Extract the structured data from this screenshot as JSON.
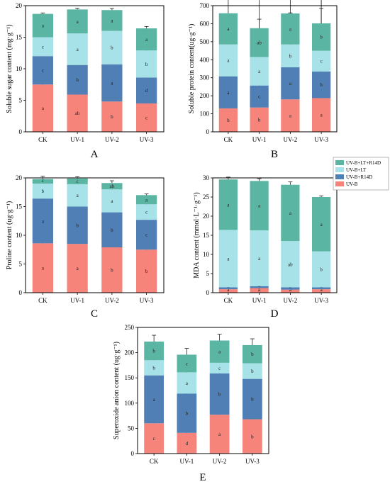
{
  "legend": {
    "entries": [
      {
        "name": "UV-B+LT+R14D",
        "color": "#5bb5a3"
      },
      {
        "name": "UV-B+LT",
        "color": "#a7e2e9"
      },
      {
        "name": "UV-B+R14D",
        "color": "#4f7fb5"
      },
      {
        "name": "UV-B",
        "color": "#f6847a"
      }
    ]
  },
  "chart_data": [
    {
      "panel": "A",
      "type": "bar",
      "stacked": true,
      "categories": [
        "CK",
        "UV-1",
        "UV-2",
        "UV-3"
      ],
      "ylabel": "Soluble sugar content (mg·g⁻¹)",
      "ylim": [
        0,
        20
      ],
      "yticks": [
        0,
        5,
        10,
        15,
        20
      ],
      "series": [
        {
          "values": [
            7.5,
            5.9,
            4.8,
            4.5
          ],
          "labels": [
            "a",
            "ab",
            "b",
            "c"
          ]
        },
        {
          "values": [
            4.5,
            4.7,
            5.9,
            4.1
          ],
          "labels": [
            "c",
            "b",
            "a",
            "d"
          ]
        },
        {
          "values": [
            3.0,
            5.0,
            5.3,
            4.3
          ],
          "labels": [
            "c",
            "a",
            "b",
            "b"
          ]
        },
        {
          "values": [
            3.7,
            3.8,
            3.3,
            3.5
          ],
          "labels": [
            "a",
            "a",
            "a",
            "a"
          ]
        }
      ]
    },
    {
      "panel": "B",
      "type": "bar",
      "stacked": true,
      "categories": [
        "CK",
        "UV-1",
        "UV-2",
        "UV-3"
      ],
      "ylabel": "Soluble protein content(ug·g⁻¹)",
      "ylim": [
        0,
        700
      ],
      "yticks": [
        0,
        100,
        200,
        300,
        400,
        500,
        600,
        700
      ],
      "series": [
        {
          "values": [
            130,
            135,
            180,
            187
          ],
          "labels": [
            "b",
            "b",
            "a",
            "a"
          ]
        },
        {
          "values": [
            178,
            122,
            178,
            148
          ],
          "labels": [
            "a",
            "c",
            "a",
            "b"
          ]
        },
        {
          "values": [
            177,
            158,
            127,
            115
          ],
          "labels": [
            "a",
            "a",
            "b",
            "c"
          ]
        },
        {
          "values": [
            173,
            160,
            172,
            152
          ],
          "labels": [
            "a",
            "ab",
            "a",
            "b"
          ]
        }
      ]
    },
    {
      "panel": "C",
      "type": "bar",
      "stacked": true,
      "categories": [
        "CK",
        "UV-1",
        "UV-2",
        "UV-3"
      ],
      "ylabel": "Proline content (ug·g⁻¹)",
      "ylim": [
        0,
        20
      ],
      "yticks": [
        0,
        5,
        10,
        15,
        20
      ],
      "series": [
        {
          "values": [
            8.6,
            8.5,
            7.9,
            7.5
          ],
          "labels": [
            "a",
            "a",
            "b",
            "b"
          ]
        },
        {
          "values": [
            7.8,
            6.5,
            6.1,
            5.2
          ],
          "labels": [
            "a",
            "b",
            "b",
            "c"
          ]
        },
        {
          "values": [
            2.6,
            3.9,
            4.0,
            2.7
          ],
          "labels": [
            "b",
            "a",
            "a",
            "c"
          ]
        },
        {
          "values": [
            0.8,
            1.0,
            1.1,
            1.6
          ],
          "labels": [
            "c",
            "c",
            "ab",
            "a"
          ]
        }
      ]
    },
    {
      "panel": "D",
      "type": "bar",
      "stacked": true,
      "categories": [
        "CK",
        "UV-1",
        "UV-2",
        "UV-3"
      ],
      "ylabel": "MDA content (mmol·L⁻¹·g⁻¹)",
      "ylim": [
        0,
        30
      ],
      "yticks": [
        0,
        5,
        10,
        15,
        20,
        25,
        30
      ],
      "series": [
        {
          "values": [
            0.9,
            1.2,
            0.8,
            0.9
          ],
          "labels": [
            "a",
            "a",
            "a",
            "a"
          ]
        },
        {
          "values": [
            0.5,
            0.5,
            0.6,
            0.5
          ],
          "labels": [
            "a",
            "a",
            "a",
            "a"
          ]
        },
        {
          "values": [
            15.0,
            14.6,
            12.1,
            9.4
          ],
          "labels": [
            "a",
            "a",
            "ab",
            "b"
          ]
        },
        {
          "values": [
            13.2,
            12.9,
            14.7,
            14.2
          ],
          "labels": [
            "a",
            "a",
            "a",
            "a"
          ]
        }
      ]
    },
    {
      "panel": "E",
      "type": "bar",
      "stacked": true,
      "categories": [
        "CK",
        "UV-1",
        "UV-2",
        "UV-3"
      ],
      "ylabel": "Superoxide anion content (ug·g⁻¹)",
      "ylim": [
        0,
        250
      ],
      "yticks": [
        0,
        50,
        100,
        150,
        200,
        250
      ],
      "series": [
        {
          "values": [
            60,
            41,
            77,
            68
          ],
          "labels": [
            "c",
            "d",
            "a",
            "b"
          ]
        },
        {
          "values": [
            95,
            78,
            82,
            80
          ],
          "labels": [
            "a",
            "b",
            "b",
            "b"
          ]
        },
        {
          "values": [
            30,
            42,
            21,
            31
          ],
          "labels": [
            "b",
            "a",
            "c",
            "b"
          ]
        },
        {
          "values": [
            37,
            35,
            44,
            36
          ],
          "labels": [
            "b",
            "c",
            "a",
            "b"
          ]
        }
      ]
    }
  ]
}
